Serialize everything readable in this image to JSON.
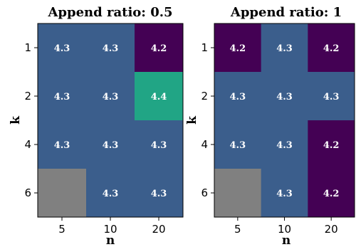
{
  "chart_data": [
    {
      "type": "heatmap",
      "title": "Append ratio: 0.5",
      "xlabel": "n",
      "ylabel": "k",
      "x_categories": [
        "5",
        "10",
        "20"
      ],
      "y_categories": [
        "1",
        "2",
        "4",
        "6"
      ],
      "values": [
        [
          4.3,
          4.3,
          4.2
        ],
        [
          4.3,
          4.3,
          4.4
        ],
        [
          4.3,
          4.3,
          4.3
        ],
        [
          null,
          4.3,
          4.3
        ]
      ],
      "labels": [
        [
          "4.3",
          "4.3",
          "4.2"
        ],
        [
          "4.3",
          "4.3",
          "4.4"
        ],
        [
          "4.3",
          "4.3",
          "4.3"
        ],
        [
          "",
          "4.3",
          "4.3"
        ]
      ],
      "colors": [
        [
          "#3b5e8c",
          "#3b5e8c",
          "#440154"
        ],
        [
          "#3b5e8c",
          "#3b5e8c",
          "#21a585"
        ],
        [
          "#3b5e8c",
          "#3b5e8c",
          "#3b5e8c"
        ],
        [
          "#808080",
          "#3b5e8c",
          "#3b5e8c"
        ]
      ],
      "colormap": "viridis",
      "missing_color": "#808080",
      "grid": false
    },
    {
      "type": "heatmap",
      "title": "Append ratio: 1",
      "xlabel": "n",
      "ylabel": "k",
      "x_categories": [
        "5",
        "10",
        "20"
      ],
      "y_categories": [
        "1",
        "2",
        "4",
        "6"
      ],
      "values": [
        [
          4.2,
          4.3,
          4.2
        ],
        [
          4.3,
          4.3,
          4.3
        ],
        [
          4.3,
          4.3,
          4.2
        ],
        [
          null,
          4.3,
          4.2
        ]
      ],
      "labels": [
        [
          "4.2",
          "4.3",
          "4.2"
        ],
        [
          "4.3",
          "4.3",
          "4.3"
        ],
        [
          "4.3",
          "4.3",
          "4.2"
        ],
        [
          "",
          "4.3",
          "4.2"
        ]
      ],
      "colors": [
        [
          "#440154",
          "#3b5e8c",
          "#440154"
        ],
        [
          "#3b5e8c",
          "#3b5e8c",
          "#3b5e8c"
        ],
        [
          "#3b5e8c",
          "#3b5e8c",
          "#440154"
        ],
        [
          "#808080",
          "#3b5e8c",
          "#440154"
        ]
      ],
      "colormap": "viridis",
      "missing_color": "#808080",
      "grid": false
    }
  ]
}
